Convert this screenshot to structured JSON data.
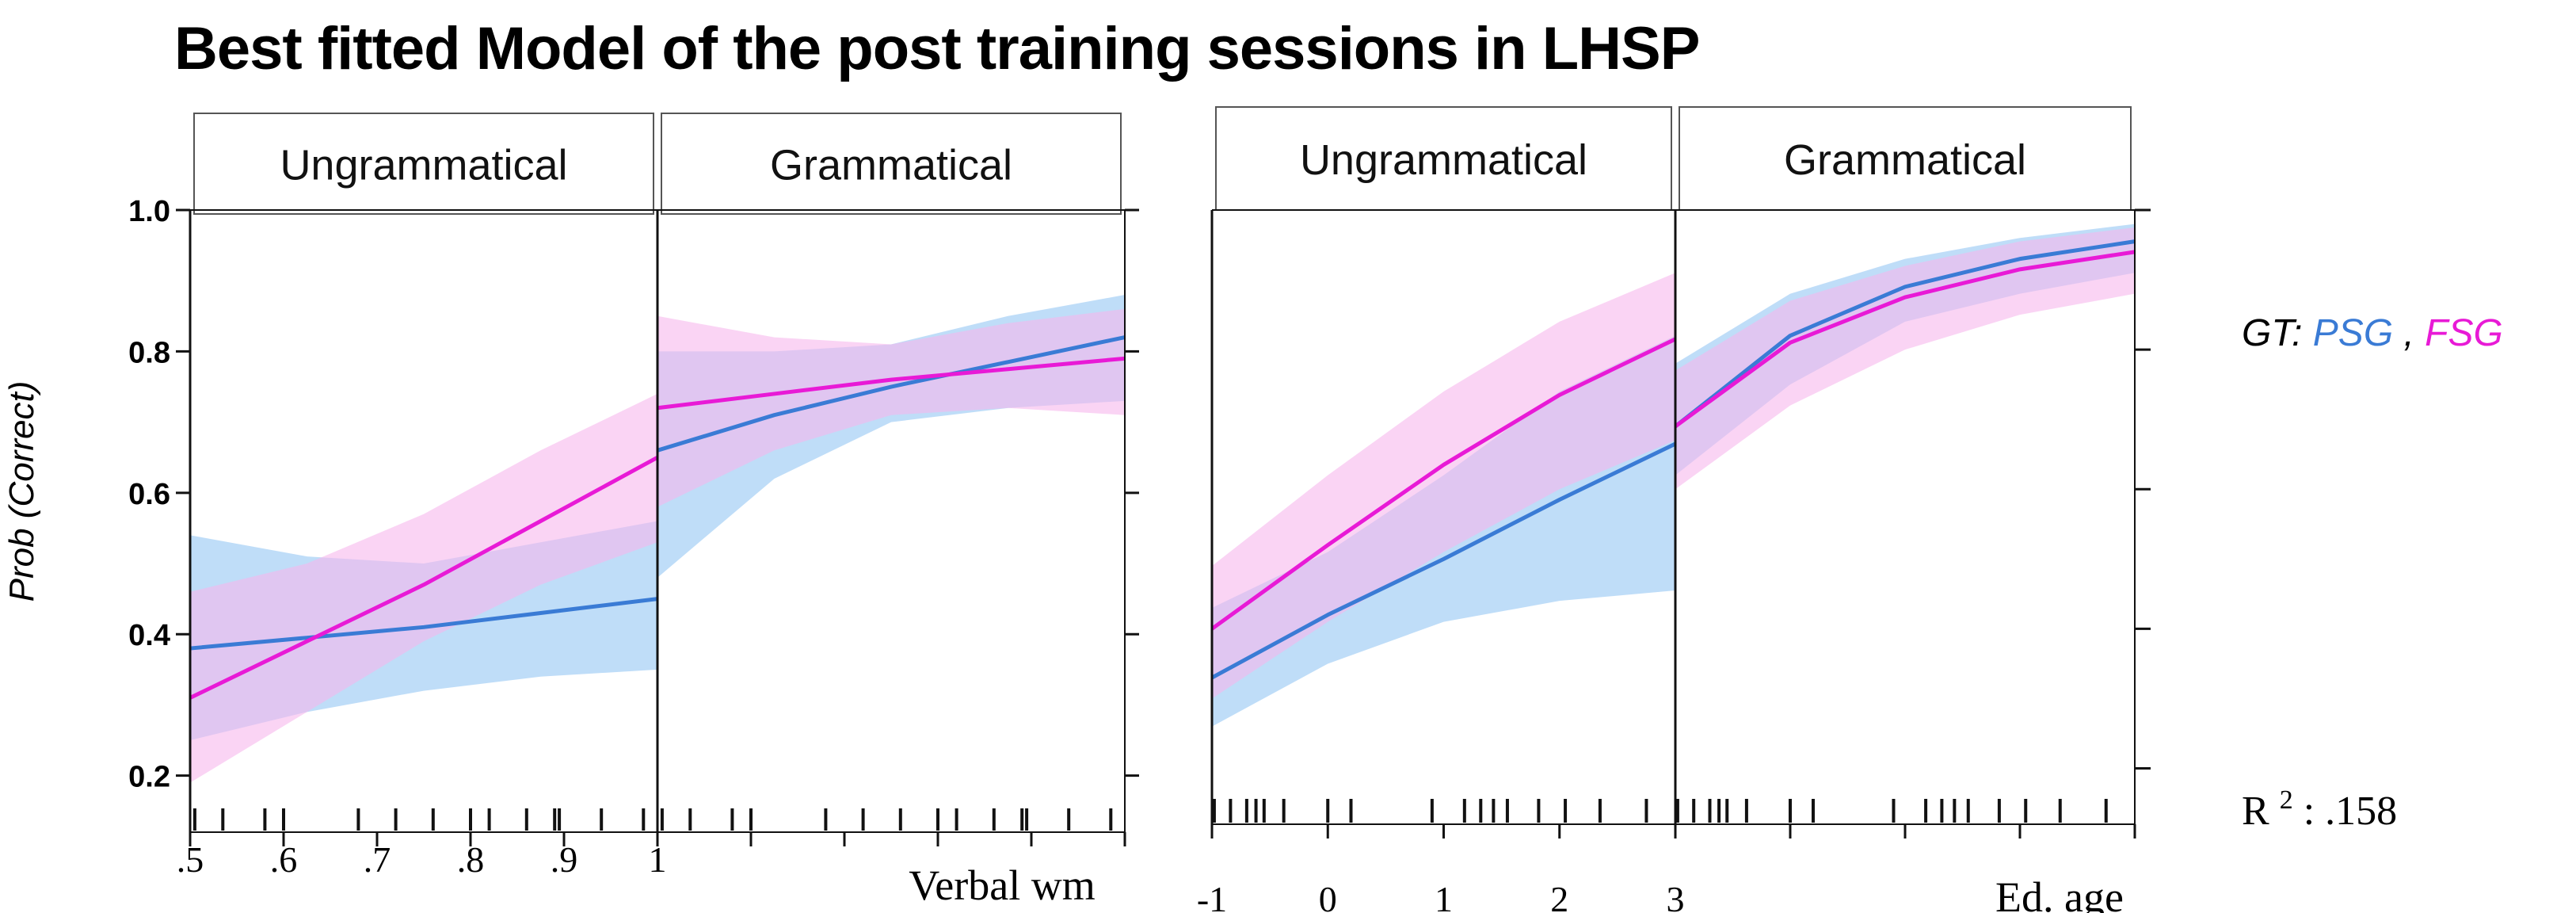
{
  "title": "Best fitted Model of the post training sessions in LHSP",
  "ylabel": "Prob (Correct)",
  "legend": {
    "prefix": "GT:",
    "series": [
      {
        "name": "PSG",
        "color": "#3a7bd5"
      },
      {
        "name": "FSG",
        "color": "#e81ad6"
      }
    ],
    "separator": ", "
  },
  "r2_label": "R",
  "r2_sup": "2",
  "r2_value": ": .158",
  "colors": {
    "psg": "#3a7bd5",
    "fsg": "#e81ad6",
    "psg_band": "#a9d2f5",
    "fsg_band": "#f7b7ec",
    "overlap": "#c5b0ee"
  },
  "chart_data": [
    {
      "type": "line",
      "xlabel": "Verbal wm",
      "ylim": [
        0.12,
        1.0
      ],
      "y_ticks": [
        1.0,
        0.8,
        0.6,
        0.4,
        0.2
      ],
      "y_tick_labels": [
        "1.0",
        "0.8",
        "0.6",
        "0.4",
        "0.2"
      ],
      "xlim": [
        0.5,
        1.0
      ],
      "x_ticks": [
        0.5,
        0.6,
        0.7,
        0.8,
        0.9,
        1.0
      ],
      "x_tick_labels": [
        ".5",
        ".6",
        ".7",
        ".8",
        ".9",
        "1"
      ],
      "rug": [
        0.505,
        0.535,
        0.58,
        0.6,
        0.68,
        0.72,
        0.76,
        0.8,
        0.82,
        0.86,
        0.89,
        0.895,
        0.94,
        0.985
      ],
      "panels": [
        {
          "label": "Ungrammatical",
          "x": [
            0.5,
            0.625,
            0.75,
            0.875,
            1.0
          ],
          "series": [
            {
              "name": "PSG",
              "y": [
                0.38,
                0.395,
                0.41,
                0.43,
                0.45
              ],
              "lower": [
                0.25,
                0.29,
                0.32,
                0.34,
                0.35
              ],
              "upper": [
                0.54,
                0.51,
                0.5,
                0.53,
                0.56
              ]
            },
            {
              "name": "FSG",
              "y": [
                0.31,
                0.39,
                0.47,
                0.56,
                0.65
              ],
              "lower": [
                0.19,
                0.29,
                0.39,
                0.47,
                0.53
              ],
              "upper": [
                0.46,
                0.5,
                0.57,
                0.66,
                0.74
              ]
            }
          ]
        },
        {
          "label": "Grammatical",
          "x": [
            0.5,
            0.625,
            0.75,
            0.875,
            1.0
          ],
          "series": [
            {
              "name": "PSG",
              "y": [
                0.66,
                0.71,
                0.75,
                0.785,
                0.82
              ],
              "lower": [
                0.48,
                0.62,
                0.7,
                0.72,
                0.73
              ],
              "upper": [
                0.8,
                0.8,
                0.81,
                0.85,
                0.88
              ]
            },
            {
              "name": "FSG",
              "y": [
                0.72,
                0.74,
                0.76,
                0.775,
                0.79
              ],
              "lower": [
                0.58,
                0.66,
                0.71,
                0.72,
                0.71
              ],
              "upper": [
                0.85,
                0.82,
                0.81,
                0.84,
                0.86
              ]
            }
          ]
        }
      ]
    },
    {
      "type": "line",
      "xlabel": "Ed. age",
      "ylim": [
        0.12,
        1.0
      ],
      "y_ticks": [
        1.0,
        0.8,
        0.6,
        0.4,
        0.2
      ],
      "xlim": [
        -1,
        3
      ],
      "x_ticks": [
        -1,
        0,
        1,
        2,
        3
      ],
      "x_tick_labels": [
        "-1",
        "0",
        "1",
        "2",
        "3"
      ],
      "rug": [
        -0.98,
        -0.84,
        -0.7,
        -0.62,
        -0.55,
        -0.38,
        0.0,
        0.2,
        0.9,
        1.18,
        1.32,
        1.43,
        1.55,
        1.82,
        2.05,
        2.35,
        2.75
      ],
      "panels": [
        {
          "label": "Ungrammatical",
          "x": [
            -1,
            0,
            1,
            2,
            3
          ],
          "series": [
            {
              "name": "PSG",
              "y": [
                0.33,
                0.42,
                0.5,
                0.585,
                0.665
              ],
              "lower": [
                0.26,
                0.35,
                0.41,
                0.44,
                0.455
              ],
              "upper": [
                0.43,
                0.51,
                0.62,
                0.74,
                0.82
              ]
            },
            {
              "name": "FSG",
              "y": [
                0.4,
                0.52,
                0.635,
                0.735,
                0.815
              ],
              "lower": [
                0.3,
                0.41,
                0.51,
                0.6,
                0.67
              ],
              "upper": [
                0.49,
                0.62,
                0.74,
                0.84,
                0.91
              ]
            }
          ]
        },
        {
          "label": "Grammatical",
          "x": [
            -1,
            0,
            1,
            2,
            3
          ],
          "series": [
            {
              "name": "PSG",
              "y": [
                0.69,
                0.82,
                0.89,
                0.93,
                0.955
              ],
              "lower": [
                0.62,
                0.75,
                0.84,
                0.88,
                0.91
              ],
              "upper": [
                0.78,
                0.88,
                0.93,
                0.96,
                0.98
              ]
            },
            {
              "name": "FSG",
              "y": [
                0.69,
                0.81,
                0.875,
                0.915,
                0.94
              ],
              "lower": [
                0.6,
                0.72,
                0.8,
                0.85,
                0.88
              ],
              "upper": [
                0.77,
                0.87,
                0.92,
                0.955,
                0.975
              ]
            }
          ]
        }
      ]
    }
  ]
}
